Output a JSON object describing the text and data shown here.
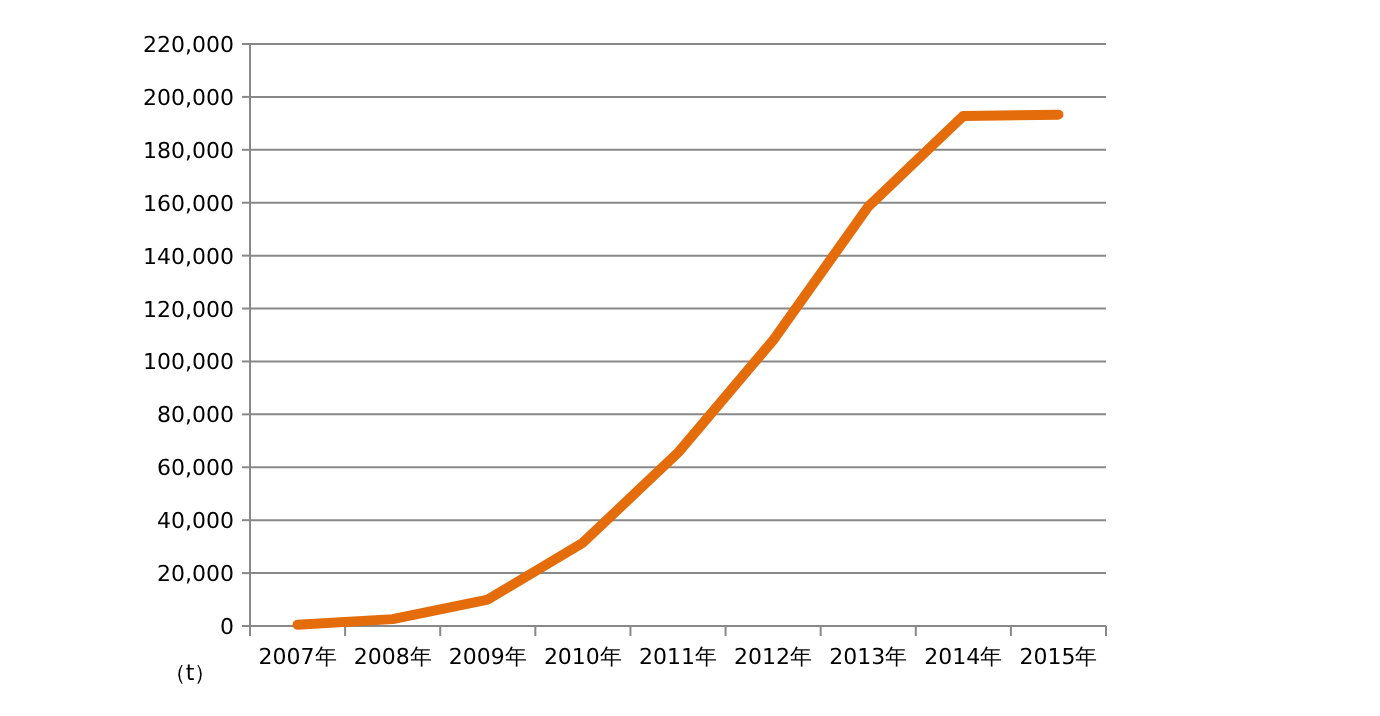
{
  "chart_data": {
    "type": "line",
    "ylabel": "（t）",
    "categories": [
      "2007年",
      "2008年",
      "2009年",
      "2010年",
      "2011年",
      "2012年",
      "2013年",
      "2014年",
      "2015年"
    ],
    "series": [
      {
        "color": "#e46c0a",
        "values": [
          500,
          2600,
          10000,
          31500,
          65500,
          108000,
          158500,
          192800,
          193300
        ]
      }
    ],
    "ylim": [
      0,
      220000
    ],
    "yticks": [
      {
        "value": 0,
        "label": "0"
      },
      {
        "value": 20000,
        "label": "20,000"
      },
      {
        "value": 40000,
        "label": "40,000"
      },
      {
        "value": 60000,
        "label": "60,000"
      },
      {
        "value": 80000,
        "label": "80,000"
      },
      {
        "value": 100000,
        "label": "100,000"
      },
      {
        "value": 120000,
        "label": "120,000"
      },
      {
        "value": 140000,
        "label": "140,000"
      },
      {
        "value": 160000,
        "label": "160,000"
      },
      {
        "value": 180000,
        "label": "180,000"
      },
      {
        "value": 200000,
        "label": "200,000"
      },
      {
        "value": 220000,
        "label": "220,000"
      }
    ],
    "grid": "y",
    "marker": "none",
    "line_style": "solid"
  }
}
